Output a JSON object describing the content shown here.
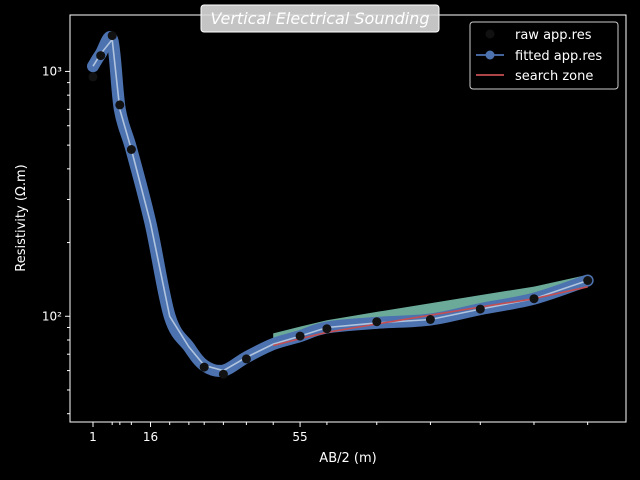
{
  "chart_data": {
    "type": "line",
    "title": "Vertical Electrical Sounding",
    "xlabel": "AB/2 (m)",
    "ylabel": "Resistivity (Ω.m)",
    "x_tick_labels": [
      {
        "value": 1,
        "label": "1"
      },
      {
        "value": 16,
        "label": "16"
      },
      {
        "value": 55,
        "label": "55"
      }
    ],
    "y_tick_labels": [
      {
        "value": 100,
        "label": "10²"
      },
      {
        "value": 1000,
        "label": "10³"
      }
    ],
    "xlim": [
      -5,
      140
    ],
    "ylim": [
      37,
      1700
    ],
    "y_scale": "log",
    "legend_position": "top-right",
    "legend": [
      "raw app.res",
      "fitted app.res",
      "search zone"
    ],
    "colors": {
      "background": "#000000",
      "raw": "#111111",
      "fitted": "#4c72b0",
      "fitted_thin": "#b0c4de",
      "search_zone": "#c44e52",
      "search_fill": "#7ec8b4"
    },
    "series": [
      {
        "name": "raw app.res",
        "x": [
          1,
          3,
          6,
          8,
          11,
          30,
          35,
          41,
          55,
          62,
          75,
          89,
          102,
          116,
          130
        ],
        "y": [
          950,
          1160,
          1400,
          730,
          480,
          62,
          58,
          67,
          83,
          89,
          95,
          97,
          107,
          118,
          140
        ]
      },
      {
        "name": "fitted app.res",
        "x": [
          1,
          3,
          6,
          8,
          11,
          16,
          21,
          26,
          30,
          35,
          41,
          48,
          55,
          62,
          75,
          89,
          102,
          116,
          130
        ],
        "y": [
          1050,
          1180,
          1350,
          700,
          480,
          240,
          100,
          75,
          63,
          60,
          68,
          77,
          83,
          90,
          94,
          97,
          107,
          118,
          140
        ]
      },
      {
        "name": "search zone",
        "x": [
          48,
          55,
          62,
          75,
          89,
          102,
          116,
          130
        ],
        "y": [
          76,
          81,
          86,
          93,
          101,
          109,
          118,
          132
        ]
      }
    ]
  }
}
